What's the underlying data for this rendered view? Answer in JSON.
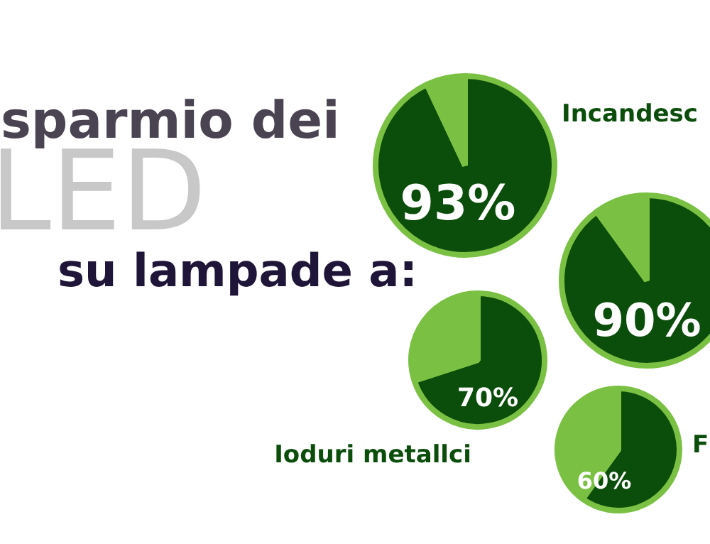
{
  "chart_data": [
    {
      "type": "pie",
      "annotations": [
        "sparmio dei",
        "LED",
        "su lampade a:"
      ],
      "title": "Incandesc",
      "categories": [
        null,
        null
      ],
      "values": [
        93,
        7
      ],
      "colors": [
        "#0b4d0b",
        "#7ac143"
      ],
      "value_labels": [
        "93%",
        null
      ]
    },
    {
      "type": "pie",
      "categories": [
        null,
        null
      ],
      "values": [
        90,
        10
      ],
      "colors": [
        "#0b4d0b",
        "#7ac143"
      ],
      "value_labels": [
        "90%",
        null
      ]
    },
    {
      "type": "pie",
      "title": "Ioduri metallci",
      "categories": [
        null,
        null
      ],
      "values": [
        70,
        30
      ],
      "colors": [
        "#0b4d0b",
        "#7ac143"
      ],
      "value_labels": [
        "70%",
        null
      ]
    },
    {
      "type": "pie",
      "title": "F",
      "categories": [
        null,
        null
      ],
      "values": [
        60,
        40
      ],
      "colors": [
        "#0b4d0b",
        "#7ac143"
      ],
      "value_labels": [
        "60%",
        null
      ]
    }
  ]
}
